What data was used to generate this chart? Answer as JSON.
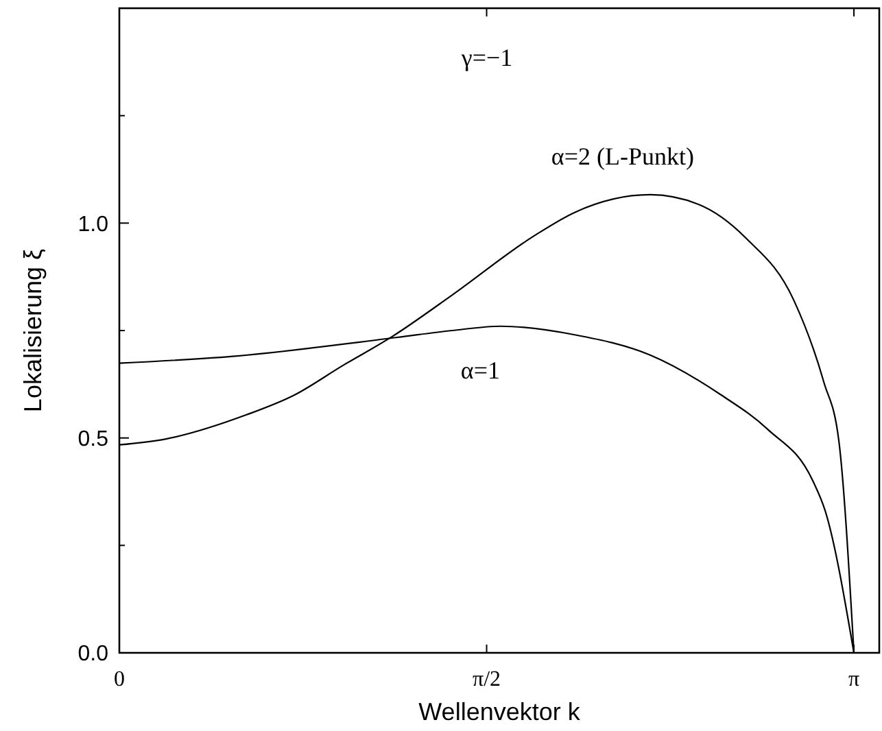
{
  "chart_data": {
    "type": "line",
    "xlabel": "Wellenvektor k",
    "ylabel": "Lokalisierung  ξ",
    "xlim": [
      0,
      3.25
    ],
    "ylim": [
      0,
      1.5
    ],
    "xticks": [
      {
        "value": 0,
        "label": "0"
      },
      {
        "value": 1.5708,
        "label": "π/2"
      },
      {
        "value": 3.1416,
        "label": "π"
      }
    ],
    "yticks": [
      {
        "value": 0,
        "label": "0.0"
      },
      {
        "value": 0.25,
        "label": null
      },
      {
        "value": 0.5,
        "label": "0.5"
      },
      {
        "value": 0.75,
        "label": null
      },
      {
        "value": 1.0,
        "label": "1.0"
      },
      {
        "value": 1.25,
        "label": null
      }
    ],
    "grid": false,
    "marker": "none",
    "line_style": "solid",
    "series": [
      {
        "name": "α=1",
        "color": "#000000",
        "x": [
          0,
          0.486,
          1.188,
          1.422,
          1.632,
          1.948,
          2.27,
          2.574,
          2.773,
          2.966,
          3.019,
          3.1416
        ],
        "values": [
          0.674,
          0.69,
          0.734,
          0.75,
          0.76,
          0.74,
          0.693,
          0.6,
          0.52,
          0.4,
          0.33,
          0
        ]
      },
      {
        "name": "α=2 (L-Punkt)",
        "color": "#000000",
        "x": [
          0,
          0.193,
          0.544,
          0.749,
          0.954,
          1.17,
          1.422,
          1.773,
          1.948,
          2.27,
          2.475,
          2.68,
          2.885,
          3.013,
          3.077,
          3.1416
        ],
        "values": [
          0.484,
          0.497,
          0.554,
          0.6,
          0.668,
          0.737,
          0.832,
          0.97,
          1.025,
          1.066,
          1.044,
          0.965,
          0.82,
          0.63,
          0.494,
          0
        ]
      }
    ],
    "annotations": [
      "γ=−1"
    ]
  }
}
